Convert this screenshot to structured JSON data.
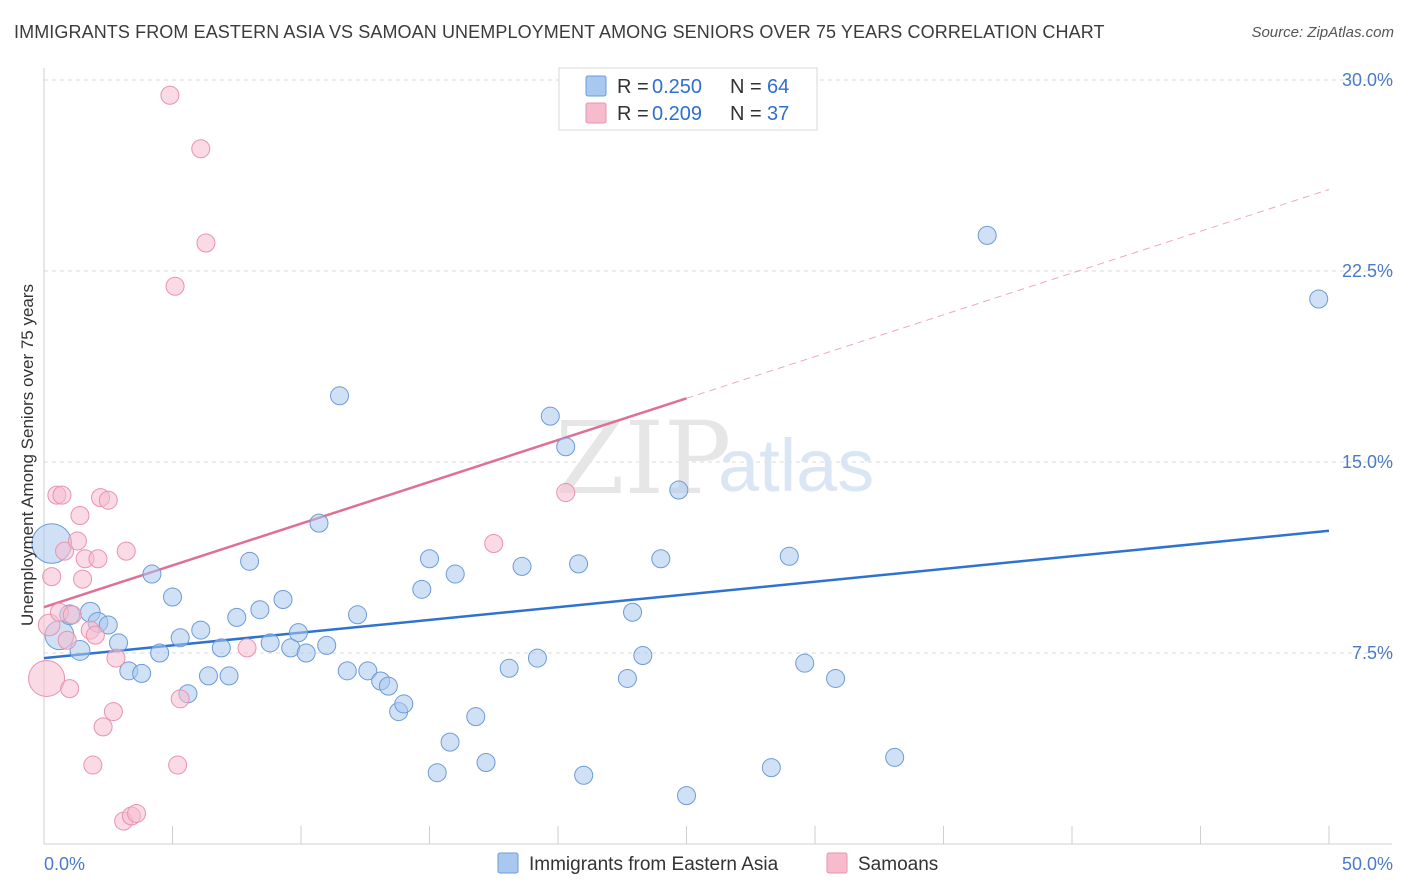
{
  "title": "IMMIGRANTS FROM EASTERN ASIA VS SAMOAN UNEMPLOYMENT AMONG SENIORS OVER 75 YEARS CORRELATION CHART",
  "source": "Source: ZipAtlas.com",
  "watermark": {
    "zip": "ZIP",
    "atlas": "atlas"
  },
  "colors": {
    "blue": "#a9c8ef",
    "blue_stroke": "#6c9bd8",
    "blue_line": "#2f73d0",
    "pink": "#f6bccd",
    "pink_stroke": "#e993ad",
    "pink_line": "#e06f95",
    "grid": "#d8d8d8",
    "tick_text": "#4a7ac8"
  },
  "legend": [
    {
      "r_label": "R = ",
      "r_value": "0.250",
      "n_label": "N = ",
      "n_value": "64",
      "series": "blue"
    },
    {
      "r_label": "R = ",
      "r_value": "0.209",
      "n_label": "N = ",
      "n_value": "37",
      "series": "pink"
    }
  ],
  "chart_data": {
    "type": "scatter",
    "title": "IMMIGRANTS FROM EASTERN ASIA VS SAMOAN UNEMPLOYMENT AMONG SENIORS OVER 75 YEARS CORRELATION CHART",
    "xlabel": "",
    "ylabel": "Unemployment Among Seniors over 75 years",
    "xlim": [
      0,
      50
    ],
    "ylim": [
      0,
      30
    ],
    "x_tick_labels": [
      "0.0%",
      "50.0%"
    ],
    "y_ticks": [
      7.5,
      15.0,
      22.5,
      30.0
    ],
    "y_tick_labels": [
      "7.5%",
      "15.0%",
      "22.5%",
      "30.0%"
    ],
    "x_minor_ticks": [
      0,
      5,
      10,
      15,
      20,
      25,
      30,
      35,
      40,
      45,
      50
    ],
    "series": [
      {
        "name": "Immigrants from Eastern Asia",
        "color": "blue",
        "trend": {
          "x": [
            0,
            50
          ],
          "y": [
            7.3,
            12.3
          ],
          "dashed_from": null
        },
        "points": [
          {
            "x": 0.3,
            "y": 11.8,
            "s": 2.2
          },
          {
            "x": 0.6,
            "y": 8.2,
            "s": 1.6
          },
          {
            "x": 1.0,
            "y": 9.0,
            "s": 1.1
          },
          {
            "x": 1.4,
            "y": 7.6,
            "s": 1.1
          },
          {
            "x": 1.8,
            "y": 9.1,
            "s": 1.1
          },
          {
            "x": 2.1,
            "y": 8.7,
            "s": 1.1
          },
          {
            "x": 2.5,
            "y": 8.6,
            "s": 1.0
          },
          {
            "x": 2.9,
            "y": 7.9,
            "s": 1.0
          },
          {
            "x": 3.3,
            "y": 6.8,
            "s": 1.0
          },
          {
            "x": 3.8,
            "y": 6.7,
            "s": 1.0
          },
          {
            "x": 4.2,
            "y": 10.6,
            "s": 1.0
          },
          {
            "x": 4.5,
            "y": 7.5,
            "s": 1.0
          },
          {
            "x": 5.0,
            "y": 9.7,
            "s": 1.0
          },
          {
            "x": 5.3,
            "y": 8.1,
            "s": 1.0
          },
          {
            "x": 5.6,
            "y": 5.9,
            "s": 1.0
          },
          {
            "x": 6.1,
            "y": 8.4,
            "s": 1.0
          },
          {
            "x": 6.4,
            "y": 6.6,
            "s": 1.0
          },
          {
            "x": 6.9,
            "y": 7.7,
            "s": 1.0
          },
          {
            "x": 7.2,
            "y": 6.6,
            "s": 1.0
          },
          {
            "x": 7.5,
            "y": 8.9,
            "s": 1.0
          },
          {
            "x": 8.0,
            "y": 11.1,
            "s": 1.0
          },
          {
            "x": 8.4,
            "y": 9.2,
            "s": 1.0
          },
          {
            "x": 8.8,
            "y": 7.9,
            "s": 1.0
          },
          {
            "x": 9.3,
            "y": 9.6,
            "s": 1.0
          },
          {
            "x": 9.6,
            "y": 7.7,
            "s": 1.0
          },
          {
            "x": 9.9,
            "y": 8.3,
            "s": 1.0
          },
          {
            "x": 10.2,
            "y": 7.5,
            "s": 1.0
          },
          {
            "x": 10.7,
            "y": 12.6,
            "s": 1.0
          },
          {
            "x": 11.0,
            "y": 7.8,
            "s": 1.0
          },
          {
            "x": 11.5,
            "y": 17.6,
            "s": 1.0
          },
          {
            "x": 11.8,
            "y": 6.8,
            "s": 1.0
          },
          {
            "x": 12.2,
            "y": 9.0,
            "s": 1.0
          },
          {
            "x": 12.6,
            "y": 6.8,
            "s": 1.0
          },
          {
            "x": 13.1,
            "y": 6.4,
            "s": 1.0
          },
          {
            "x": 13.4,
            "y": 6.2,
            "s": 1.0
          },
          {
            "x": 13.8,
            "y": 5.2,
            "s": 1.0
          },
          {
            "x": 14.0,
            "y": 5.5,
            "s": 1.0
          },
          {
            "x": 14.7,
            "y": 10.0,
            "s": 1.0
          },
          {
            "x": 15.0,
            "y": 11.2,
            "s": 1.0
          },
          {
            "x": 15.3,
            "y": 2.8,
            "s": 1.0
          },
          {
            "x": 15.8,
            "y": 4.0,
            "s": 1.0
          },
          {
            "x": 16.0,
            "y": 10.6,
            "s": 1.0
          },
          {
            "x": 16.8,
            "y": 5.0,
            "s": 1.0
          },
          {
            "x": 17.2,
            "y": 3.2,
            "s": 1.0
          },
          {
            "x": 18.1,
            "y": 6.9,
            "s": 1.0
          },
          {
            "x": 18.6,
            "y": 10.9,
            "s": 1.0
          },
          {
            "x": 19.2,
            "y": 7.3,
            "s": 1.0
          },
          {
            "x": 19.7,
            "y": 16.8,
            "s": 1.0
          },
          {
            "x": 20.3,
            "y": 15.6,
            "s": 1.0
          },
          {
            "x": 20.8,
            "y": 11.0,
            "s": 1.0
          },
          {
            "x": 21.0,
            "y": 2.7,
            "s": 1.0
          },
          {
            "x": 22.7,
            "y": 6.5,
            "s": 1.0
          },
          {
            "x": 22.9,
            "y": 9.1,
            "s": 1.0
          },
          {
            "x": 23.3,
            "y": 7.4,
            "s": 1.0
          },
          {
            "x": 24.0,
            "y": 11.2,
            "s": 1.0
          },
          {
            "x": 24.7,
            "y": 13.9,
            "s": 1.0
          },
          {
            "x": 25.0,
            "y": 1.9,
            "s": 1.0
          },
          {
            "x": 28.3,
            "y": 3.0,
            "s": 1.0
          },
          {
            "x": 29.0,
            "y": 11.3,
            "s": 1.0
          },
          {
            "x": 29.6,
            "y": 7.1,
            "s": 1.0
          },
          {
            "x": 30.8,
            "y": 6.5,
            "s": 1.0
          },
          {
            "x": 33.1,
            "y": 3.4,
            "s": 1.0
          },
          {
            "x": 36.7,
            "y": 23.9,
            "s": 1.0
          },
          {
            "x": 49.6,
            "y": 21.4,
            "s": 1.0
          }
        ]
      },
      {
        "name": "Samoans",
        "color": "pink",
        "trend": {
          "x": [
            0,
            50
          ],
          "y": [
            9.3,
            25.7
          ],
          "dashed_from": 25.0
        },
        "points": [
          {
            "x": 0.1,
            "y": 6.5,
            "s": 2.0
          },
          {
            "x": 0.2,
            "y": 8.6,
            "s": 1.2
          },
          {
            "x": 0.3,
            "y": 10.5,
            "s": 1.0
          },
          {
            "x": 0.5,
            "y": 13.7,
            "s": 1.0
          },
          {
            "x": 0.6,
            "y": 9.1,
            "s": 1.0
          },
          {
            "x": 0.7,
            "y": 13.7,
            "s": 1.0
          },
          {
            "x": 0.8,
            "y": 11.5,
            "s": 1.0
          },
          {
            "x": 0.9,
            "y": 8.0,
            "s": 1.0
          },
          {
            "x": 1.0,
            "y": 6.1,
            "s": 1.0
          },
          {
            "x": 1.1,
            "y": 9.0,
            "s": 1.0
          },
          {
            "x": 1.3,
            "y": 11.9,
            "s": 1.0
          },
          {
            "x": 1.4,
            "y": 12.9,
            "s": 1.0
          },
          {
            "x": 1.5,
            "y": 10.4,
            "s": 1.0
          },
          {
            "x": 1.6,
            "y": 11.2,
            "s": 1.0
          },
          {
            "x": 1.8,
            "y": 8.4,
            "s": 1.0
          },
          {
            "x": 1.9,
            "y": 3.1,
            "s": 1.0
          },
          {
            "x": 2.0,
            "y": 8.2,
            "s": 1.0
          },
          {
            "x": 2.1,
            "y": 11.2,
            "s": 1.0
          },
          {
            "x": 2.2,
            "y": 13.6,
            "s": 1.0
          },
          {
            "x": 2.3,
            "y": 4.6,
            "s": 1.0
          },
          {
            "x": 2.5,
            "y": 13.5,
            "s": 1.0
          },
          {
            "x": 2.7,
            "y": 5.2,
            "s": 1.0
          },
          {
            "x": 2.8,
            "y": 7.3,
            "s": 1.0
          },
          {
            "x": 3.2,
            "y": 11.5,
            "s": 1.0
          },
          {
            "x": 3.1,
            "y": 0.9,
            "s": 1.0
          },
          {
            "x": 3.4,
            "y": 1.1,
            "s": 1.0
          },
          {
            "x": 3.6,
            "y": 1.2,
            "s": 1.0
          },
          {
            "x": 4.9,
            "y": 29.4,
            "s": 1.0
          },
          {
            "x": 5.1,
            "y": 21.9,
            "s": 1.0
          },
          {
            "x": 5.2,
            "y": 3.1,
            "s": 1.0
          },
          {
            "x": 5.3,
            "y": 5.7,
            "s": 1.0
          },
          {
            "x": 6.1,
            "y": 27.3,
            "s": 1.0
          },
          {
            "x": 6.3,
            "y": 23.6,
            "s": 1.0
          },
          {
            "x": 7.9,
            "y": 7.7,
            "s": 1.0
          },
          {
            "x": 17.5,
            "y": 11.8,
            "s": 1.0
          },
          {
            "x": 20.3,
            "y": 13.8,
            "s": 1.0
          },
          {
            "x": 2.9,
            "y": 8.3,
            "s": 0.0
          }
        ]
      }
    ]
  },
  "bottom_legend": [
    {
      "label": "Immigrants from Eastern Asia",
      "series": "blue"
    },
    {
      "label": "Samoans",
      "series": "pink"
    }
  ]
}
